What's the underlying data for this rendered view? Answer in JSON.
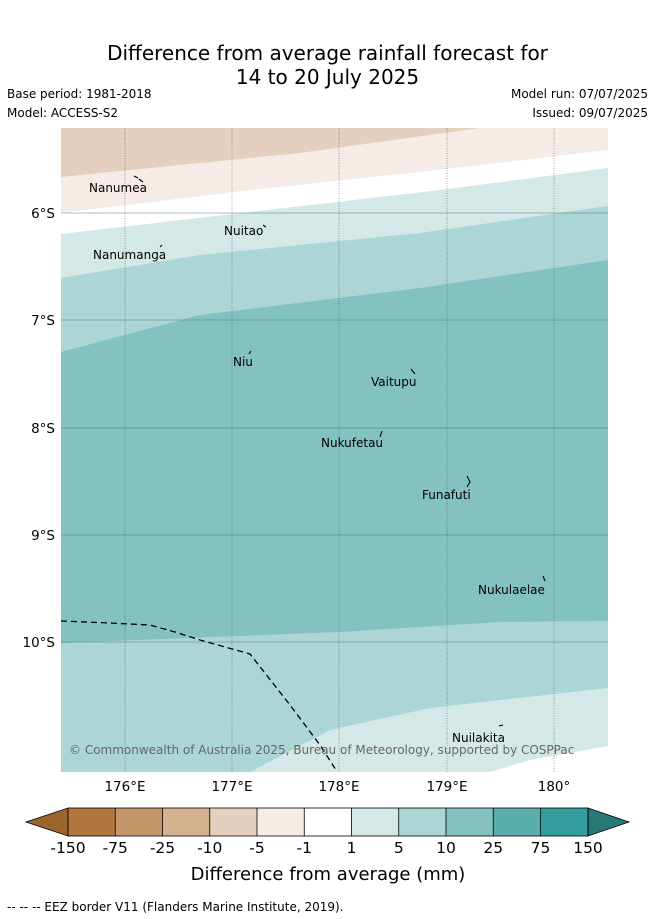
{
  "header": {
    "title_line1": "Difference from average rainfall forecast for",
    "title_line2": "14 to 20 July 2025",
    "base_period": "Base period: 1981-2018",
    "model": "Model: ACCESS-S2",
    "model_run": "Model run: 07/07/2025",
    "issued": "Issued: 09/07/2025"
  },
  "map": {
    "lat_labels": [
      "6°S",
      "7°S",
      "8°S",
      "9°S",
      "10°S"
    ],
    "lon_labels": [
      "176°E",
      "177°E",
      "178°E",
      "179°E",
      "180°"
    ],
    "islands": [
      {
        "name": "Nanumea"
      },
      {
        "name": "Nuitao"
      },
      {
        "name": "Nanumanga"
      },
      {
        "name": "Niu"
      },
      {
        "name": "Vaitupu"
      },
      {
        "name": "Nukufetau"
      },
      {
        "name": "Funafuti"
      },
      {
        "name": "Nukulaelae"
      },
      {
        "name": "Nuilakita"
      }
    ],
    "copyright": "© Commonwealth of Australia 2025, Bureau of Meteorology, supported by COSPPac"
  },
  "colorbar": {
    "label": "Difference from average (mm)",
    "ticks": [
      "-150",
      "-75",
      "-25",
      "-10",
      "-5",
      "-1",
      "1",
      "5",
      "10",
      "25",
      "75",
      "150"
    ],
    "colors": {
      "extend_low": "#9b6530",
      "b1": "#b1763d",
      "b2": "#c3966a",
      "b3": "#d5b390",
      "b4": "#e5d0bf",
      "b5": "#f5ece8",
      "b6": "#ffffff",
      "b7": "#d5e8e8",
      "b8": "#acd5d5",
      "b9": "#84c2c2",
      "b10": "#5aaeae",
      "b11": "#349d9d",
      "extend_high": "#287878"
    }
  },
  "footnote": "-- -- -- EEZ border V11 (Flanders Marine Institute, 2019)."
}
